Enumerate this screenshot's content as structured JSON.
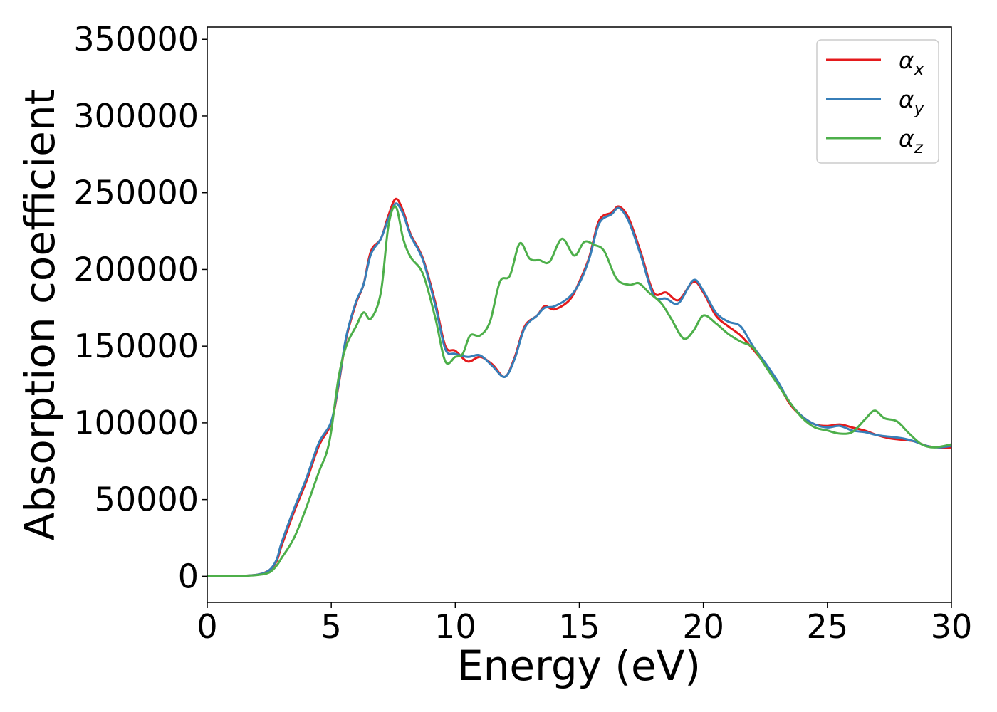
{
  "chart_data": {
    "type": "line",
    "title": "",
    "xlabel": "Energy (eV)",
    "ylabel": "Absorption coefficient",
    "xlim": [
      0,
      30
    ],
    "ylim": [
      -17000,
      358000
    ],
    "xticks": [
      0,
      5,
      10,
      15,
      20,
      25,
      30
    ],
    "xtick_labels": [
      "0",
      "5",
      "10",
      "15",
      "20",
      "25",
      "30"
    ],
    "yticks": [
      0,
      50000,
      100000,
      150000,
      200000,
      250000,
      300000,
      350000
    ],
    "ytick_labels": [
      "0",
      "50000",
      "100000",
      "150000",
      "200000",
      "250000",
      "300000",
      "350000"
    ],
    "grid": false,
    "legend_position": "top-right",
    "series": [
      {
        "name": "α",
        "subscript": "x",
        "color": "#e41a1c",
        "points": [
          [
            0,
            0
          ],
          [
            1,
            100
          ],
          [
            2,
            1000
          ],
          [
            2.5,
            4000
          ],
          [
            2.8,
            10000
          ],
          [
            3,
            20000
          ],
          [
            3.5,
            42000
          ],
          [
            4,
            62000
          ],
          [
            4.5,
            85000
          ],
          [
            5,
            100000
          ],
          [
            5.3,
            125000
          ],
          [
            5.6,
            155000
          ],
          [
            6,
            178000
          ],
          [
            6.3,
            190000
          ],
          [
            6.6,
            212000
          ],
          [
            7,
            220000
          ],
          [
            7.3,
            235000
          ],
          [
            7.6,
            246000
          ],
          [
            7.9,
            238000
          ],
          [
            8.2,
            223000
          ],
          [
            8.7,
            207000
          ],
          [
            9.2,
            178000
          ],
          [
            9.6,
            150000
          ],
          [
            10,
            147000
          ],
          [
            10.5,
            140000
          ],
          [
            11,
            143000
          ],
          [
            11.5,
            138000
          ],
          [
            12,
            130000
          ],
          [
            12.4,
            143000
          ],
          [
            12.8,
            163000
          ],
          [
            13.3,
            170000
          ],
          [
            13.6,
            176000
          ],
          [
            14,
            174000
          ],
          [
            14.6,
            180000
          ],
          [
            15,
            192000
          ],
          [
            15.4,
            208000
          ],
          [
            15.8,
            232000
          ],
          [
            16.3,
            237000
          ],
          [
            16.6,
            241000
          ],
          [
            17,
            233000
          ],
          [
            17.5,
            210000
          ],
          [
            18,
            185000
          ],
          [
            18.5,
            185000
          ],
          [
            19,
            180000
          ],
          [
            19.6,
            192000
          ],
          [
            20,
            185000
          ],
          [
            20.5,
            170000
          ],
          [
            21,
            163000
          ],
          [
            21.5,
            157000
          ],
          [
            22,
            148000
          ],
          [
            22.5,
            138000
          ],
          [
            23,
            126000
          ],
          [
            23.5,
            112000
          ],
          [
            24,
            104000
          ],
          [
            24.5,
            99000
          ],
          [
            25,
            98000
          ],
          [
            25.5,
            99000
          ],
          [
            26,
            97000
          ],
          [
            26.5,
            95000
          ],
          [
            27,
            92000
          ],
          [
            27.5,
            90000
          ],
          [
            28,
            89000
          ],
          [
            28.5,
            88000
          ],
          [
            29,
            85000
          ],
          [
            29.5,
            84000
          ],
          [
            30,
            84000
          ]
        ]
      },
      {
        "name": "α",
        "subscript": "y",
        "color": "#377eb8",
        "points": [
          [
            0,
            0
          ],
          [
            1,
            100
          ],
          [
            2,
            1000
          ],
          [
            2.5,
            4000
          ],
          [
            2.8,
            11000
          ],
          [
            3,
            22000
          ],
          [
            3.5,
            44000
          ],
          [
            4,
            64000
          ],
          [
            4.5,
            87000
          ],
          [
            5,
            101000
          ],
          [
            5.3,
            126000
          ],
          [
            5.6,
            156000
          ],
          [
            6,
            179000
          ],
          [
            6.3,
            190000
          ],
          [
            6.6,
            210000
          ],
          [
            7,
            220000
          ],
          [
            7.3,
            233000
          ],
          [
            7.6,
            243000
          ],
          [
            7.9,
            236000
          ],
          [
            8.2,
            222000
          ],
          [
            8.7,
            206000
          ],
          [
            9.2,
            176000
          ],
          [
            9.6,
            148000
          ],
          [
            10,
            145000
          ],
          [
            10.5,
            143000
          ],
          [
            11,
            144000
          ],
          [
            11.5,
            137000
          ],
          [
            12,
            130000
          ],
          [
            12.4,
            142000
          ],
          [
            12.8,
            162000
          ],
          [
            13.3,
            170000
          ],
          [
            13.6,
            175000
          ],
          [
            14,
            176000
          ],
          [
            14.6,
            182000
          ],
          [
            15,
            191000
          ],
          [
            15.4,
            207000
          ],
          [
            15.8,
            230000
          ],
          [
            16.3,
            236000
          ],
          [
            16.6,
            240000
          ],
          [
            17,
            231000
          ],
          [
            17.5,
            208000
          ],
          [
            18,
            183000
          ],
          [
            18.5,
            181000
          ],
          [
            19,
            178000
          ],
          [
            19.6,
            193000
          ],
          [
            20,
            186000
          ],
          [
            20.5,
            172000
          ],
          [
            21,
            166000
          ],
          [
            21.5,
            163000
          ],
          [
            22,
            150000
          ],
          [
            22.5,
            139000
          ],
          [
            23,
            127000
          ],
          [
            23.5,
            113000
          ],
          [
            24,
            104000
          ],
          [
            24.5,
            99000
          ],
          [
            25,
            97000
          ],
          [
            25.5,
            98000
          ],
          [
            26,
            95000
          ],
          [
            26.5,
            94000
          ],
          [
            27,
            92000
          ],
          [
            27.5,
            91000
          ],
          [
            28,
            90000
          ],
          [
            28.5,
            88000
          ],
          [
            29,
            85000
          ],
          [
            29.5,
            84000
          ],
          [
            30,
            85000
          ]
        ]
      },
      {
        "name": "α",
        "subscript": "z",
        "color": "#4daf4a",
        "points": [
          [
            0,
            0
          ],
          [
            1,
            100
          ],
          [
            2,
            800
          ],
          [
            2.5,
            2500
          ],
          [
            2.8,
            7000
          ],
          [
            3,
            12000
          ],
          [
            3.5,
            25000
          ],
          [
            4,
            45000
          ],
          [
            4.5,
            68000
          ],
          [
            4.8,
            80000
          ],
          [
            5,
            95000
          ],
          [
            5.3,
            130000
          ],
          [
            5.6,
            150000
          ],
          [
            6,
            163000
          ],
          [
            6.3,
            172000
          ],
          [
            6.6,
            168000
          ],
          [
            7,
            185000
          ],
          [
            7.3,
            228000
          ],
          [
            7.6,
            241000
          ],
          [
            7.9,
            220000
          ],
          [
            8.2,
            208000
          ],
          [
            8.7,
            197000
          ],
          [
            9.2,
            168000
          ],
          [
            9.6,
            140000
          ],
          [
            10,
            143000
          ],
          [
            10.3,
            145000
          ],
          [
            10.6,
            157000
          ],
          [
            11,
            157000
          ],
          [
            11.4,
            166000
          ],
          [
            11.8,
            192000
          ],
          [
            12.2,
            196000
          ],
          [
            12.6,
            217000
          ],
          [
            13,
            207000
          ],
          [
            13.4,
            206000
          ],
          [
            13.8,
            205000
          ],
          [
            14.3,
            220000
          ],
          [
            14.8,
            209000
          ],
          [
            15.2,
            218000
          ],
          [
            15.6,
            216000
          ],
          [
            16,
            212000
          ],
          [
            16.5,
            194000
          ],
          [
            17,
            190000
          ],
          [
            17.4,
            191000
          ],
          [
            17.8,
            185000
          ],
          [
            18.3,
            178000
          ],
          [
            18.7,
            168000
          ],
          [
            19.2,
            155000
          ],
          [
            19.6,
            160000
          ],
          [
            20,
            170000
          ],
          [
            20.5,
            165000
          ],
          [
            21,
            158000
          ],
          [
            21.5,
            153000
          ],
          [
            22,
            149000
          ],
          [
            22.5,
            137000
          ],
          [
            23,
            125000
          ],
          [
            23.5,
            113000
          ],
          [
            24,
            103000
          ],
          [
            24.5,
            97000
          ],
          [
            25,
            95000
          ],
          [
            25.5,
            93000
          ],
          [
            26,
            94000
          ],
          [
            26.5,
            102000
          ],
          [
            26.9,
            108000
          ],
          [
            27.3,
            103000
          ],
          [
            27.8,
            101000
          ],
          [
            28.3,
            93000
          ],
          [
            28.8,
            86000
          ],
          [
            29.3,
            84000
          ],
          [
            30,
            86000
          ]
        ]
      }
    ]
  }
}
